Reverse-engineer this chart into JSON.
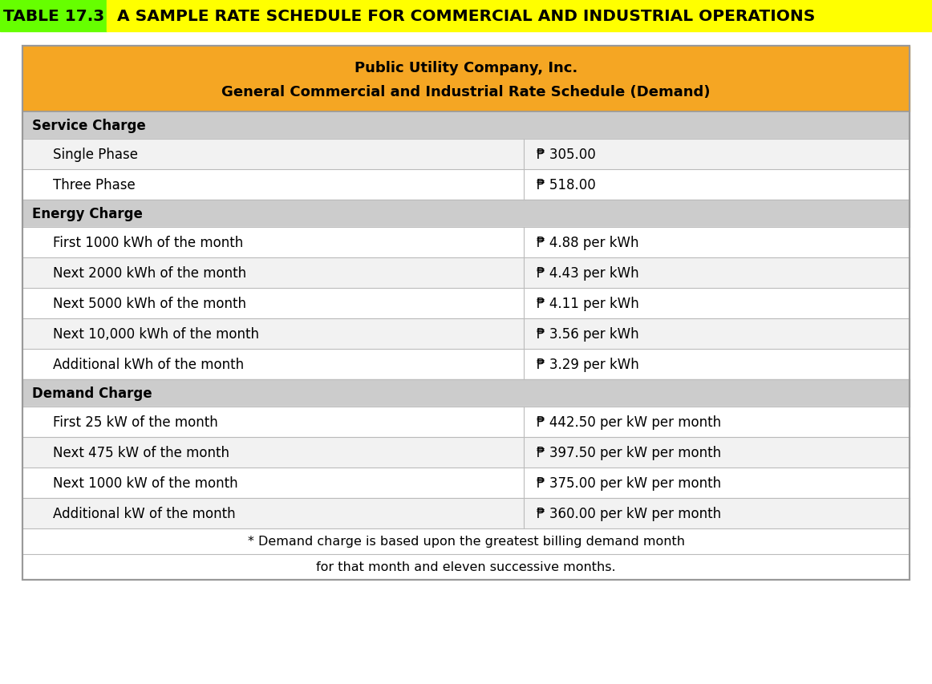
{
  "title_prefix": "TABLE 17.3",
  "title_rest": " A SAMPLE RATE SCHEDULE FOR COMMERCIAL AND INDUSTRIAL OPERATIONS",
  "title_prefix_bg": "#66FF00",
  "title_bg": "#FFFF00",
  "title_fontsize": 14.5,
  "header_line1": "Public Utility Company, Inc.",
  "header_line2": "General Commercial and Industrial Rate Schedule (Demand)",
  "header_bg": "#F5A623",
  "header_fontsize": 13,
  "section_bg": "#CCCCCC",
  "section_fontsize": 12,
  "row_bg_white": "#FFFFFF",
  "row_bg_light": "#F2F2F2",
  "row_fontsize": 12,
  "table_border_color": "#999999",
  "col_split": 0.565,
  "footnote_fontsize": 11.5,
  "rows": [
    {
      "type": "section",
      "left": "Service Charge",
      "right": ""
    },
    {
      "type": "data",
      "left": "Single Phase",
      "right": "₱ 305.00"
    },
    {
      "type": "data",
      "left": "Three Phase",
      "right": "₱ 518.00"
    },
    {
      "type": "section",
      "left": "Energy Charge",
      "right": ""
    },
    {
      "type": "data",
      "left": "First 1000 kWh of the month",
      "right": "₱ 4.88 per kWh"
    },
    {
      "type": "data",
      "left": "Next 2000 kWh of the month",
      "right": "₱ 4.43 per kWh"
    },
    {
      "type": "data",
      "left": "Next 5000 kWh of the month",
      "right": "₱ 4.11 per kWh"
    },
    {
      "type": "data",
      "left": "Next 10,000 kWh of the month",
      "right": "₱ 3.56 per kWh"
    },
    {
      "type": "data",
      "left": "Additional kWh of the month",
      "right": "₱ 3.29 per kWh"
    },
    {
      "type": "section",
      "left": "Demand Charge",
      "right": ""
    },
    {
      "type": "data",
      "left": "First 25 kW of the month",
      "right": "₱ 442.50 per kW per month"
    },
    {
      "type": "data",
      "left": "Next 475 kW of the month",
      "right": "₱ 397.50 per kW per month"
    },
    {
      "type": "data",
      "left": "Next 1000 kW of the month",
      "right": "₱ 375.00 per kW per month"
    },
    {
      "type": "data",
      "left": "Additional kW of the month",
      "right": "₱ 360.00 per kW per month"
    },
    {
      "type": "footnote",
      "text": "* Demand charge is based upon the greatest billing demand month"
    },
    {
      "type": "footnote",
      "text": "for that month and eleven successive months."
    }
  ]
}
